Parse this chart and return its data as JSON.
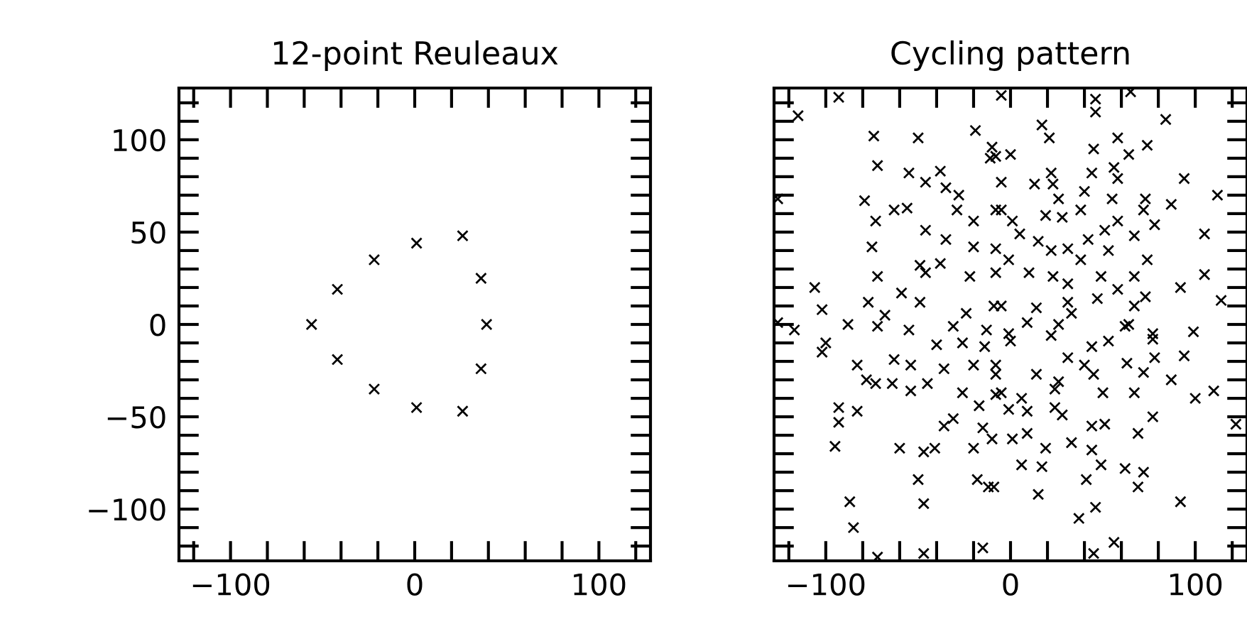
{
  "chart_data": [
    {
      "type": "scatter",
      "title": "12-point Reuleaux",
      "marker": "cross",
      "grid": false,
      "xlim": [
        -128,
        128
      ],
      "ylim": [
        -128,
        128
      ],
      "xticks": [
        {
          "value": -120,
          "label": null
        },
        {
          "value": -100,
          "label": "−100"
        },
        {
          "value": -80,
          "label": null
        },
        {
          "value": -60,
          "label": null
        },
        {
          "value": -40,
          "label": null
        },
        {
          "value": -20,
          "label": null
        },
        0,
        {
          "value": 20,
          "label": null
        },
        {
          "value": 40,
          "label": null
        },
        {
          "value": 60,
          "label": null
        },
        {
          "value": 80,
          "label": null
        },
        100,
        {
          "value": 120,
          "label": null
        }
      ],
      "yticks": [
        {
          "value": -120,
          "label": null
        },
        {
          "value": -110,
          "label": null
        },
        {
          "value": -100,
          "label": "−100"
        },
        {
          "value": -90,
          "label": null
        },
        {
          "value": -80,
          "label": null
        },
        {
          "value": -70,
          "label": null
        },
        {
          "value": -60,
          "label": null
        },
        {
          "value": -50,
          "label": "−50"
        },
        {
          "value": -40,
          "label": null
        },
        {
          "value": -30,
          "label": null
        },
        {
          "value": -20,
          "label": null
        },
        {
          "value": -10,
          "label": null
        },
        0,
        {
          "value": 10,
          "label": null
        },
        {
          "value": 20,
          "label": null
        },
        {
          "value": 30,
          "label": null
        },
        {
          "value": 40,
          "label": null
        },
        50,
        {
          "value": 60,
          "label": null
        },
        {
          "value": 70,
          "label": null
        },
        {
          "value": 80,
          "label": null
        },
        {
          "value": 90,
          "label": null
        },
        100,
        {
          "value": 110,
          "label": null
        },
        {
          "value": 120,
          "label": null
        }
      ],
      "series": [
        {
          "color": "#000000",
          "x": [
            -56,
            -42,
            -22,
            1,
            26,
            36,
            39,
            36,
            26,
            1,
            -22,
            -42
          ],
          "values": [
            0,
            19,
            35,
            44,
            48,
            25,
            0,
            -24,
            -47,
            -45,
            -35,
            -19
          ]
        }
      ]
    },
    {
      "type": "scatter",
      "title": "Cycling pattern",
      "marker": "cross",
      "grid": false,
      "tick_labels": "x",
      "xlim": [
        -128,
        128
      ],
      "ylim": [
        -128,
        128
      ],
      "xticks": [
        {
          "value": -120,
          "label": null
        },
        {
          "value": -100,
          "label": "−100"
        },
        {
          "value": -80,
          "label": null
        },
        {
          "value": -60,
          "label": null
        },
        {
          "value": -40,
          "label": null
        },
        {
          "value": -20,
          "label": null
        },
        0,
        {
          "value": 20,
          "label": null
        },
        {
          "value": 40,
          "label": null
        },
        {
          "value": 60,
          "label": null
        },
        {
          "value": 80,
          "label": null
        },
        100,
        {
          "value": 120,
          "label": null
        }
      ],
      "yticks": [
        {
          "value": -120,
          "label": null
        },
        {
          "value": -110,
          "label": null
        },
        {
          "value": -100,
          "label": null
        },
        {
          "value": -90,
          "label": null
        },
        {
          "value": -80,
          "label": null
        },
        {
          "value": -70,
          "label": null
        },
        {
          "value": -60,
          "label": null
        },
        {
          "value": -50,
          "label": null
        },
        {
          "value": -40,
          "label": null
        },
        {
          "value": -30,
          "label": null
        },
        {
          "value": -20,
          "label": null
        },
        {
          "value": -10,
          "label": null
        },
        {
          "value": 0,
          "label": null
        },
        {
          "value": 10,
          "label": null
        },
        {
          "value": 20,
          "label": null
        },
        {
          "value": 30,
          "label": null
        },
        {
          "value": 40,
          "label": null
        },
        {
          "value": 50,
          "label": null
        },
        {
          "value": 60,
          "label": null
        },
        {
          "value": 70,
          "label": null
        },
        {
          "value": 80,
          "label": null
        },
        {
          "value": 90,
          "label": null
        },
        {
          "value": 100,
          "label": null
        },
        {
          "value": 110,
          "label": null
        },
        {
          "value": 120,
          "label": null
        }
      ],
      "series": [
        {
          "color": "#000000",
          "x": [
            -93,
            -115,
            -74,
            -50,
            -19,
            -10,
            -11,
            -72,
            -55,
            -38,
            -46,
            -35,
            -28,
            -126,
            -79,
            -56,
            -63,
            -73,
            -29,
            -20,
            -8,
            -46,
            -35,
            -75,
            -20,
            -8,
            -49,
            -38,
            -46,
            -72,
            -22,
            -8,
            -106,
            -59,
            -77,
            -49,
            -9,
            -102,
            -24,
            -68,
            -88,
            -126,
            -117,
            -72,
            -55,
            -31,
            -13,
            -5,
            46,
            46,
            65,
            84,
            17,
            21,
            58,
            45,
            64,
            74,
            0,
            -8,
            44,
            56,
            58,
            94,
            112,
            -5,
            13,
            22,
            23,
            40,
            38,
            55,
            73,
            87,
            26,
            19,
            28,
            -5,
            1,
            78,
            72,
            58,
            51,
            5,
            42,
            67,
            105,
            15,
            22,
            31,
            53,
            -1,
            38,
            74,
            10,
            23,
            49,
            58,
            67,
            92,
            105,
            114,
            31,
            31,
            47,
            67,
            73,
            -5,
            14,
            33,
            9,
            26,
            62,
            77,
            99,
            -1,
            -100,
            -102,
            -40,
            -26,
            -14,
            -83,
            -63,
            -54,
            -36,
            -20,
            -78,
            -73,
            -64,
            -54,
            -45,
            -26,
            -8,
            -17,
            -93,
            -83,
            -93,
            -31,
            -36,
            -15,
            -10,
            -95,
            -60,
            -47,
            -41,
            -20,
            -50,
            -18,
            -12,
            -87,
            -47,
            -85,
            -72,
            -47,
            -15,
            0,
            -8,
            22,
            44,
            53,
            64,
            77,
            94,
            31,
            40,
            45,
            63,
            72,
            78,
            14,
            26,
            24,
            -8,
            -5,
            50,
            67,
            87,
            100,
            110,
            122,
            6,
            9,
            24,
            28,
            -1,
            44,
            51,
            69,
            77,
            1,
            9,
            19,
            33,
            44,
            49,
            41,
            6,
            17,
            62,
            72,
            69,
            15,
            92,
            46,
            37,
            56,
            45,
            -9
          ],
          "values": [
            123,
            113,
            102,
            101,
            105,
            96,
            90,
            86,
            82,
            83,
            77,
            74,
            70,
            68,
            67,
            63,
            62,
            56,
            62,
            56,
            62,
            51,
            46,
            42,
            42,
            41,
            32,
            33,
            28,
            26,
            26,
            28,
            20,
            17,
            12,
            12,
            10,
            8,
            6,
            5,
            0,
            1,
            -3,
            -1,
            -3,
            -1,
            -3,
            124,
            122,
            115,
            126,
            111,
            108,
            101,
            101,
            95,
            92,
            97,
            92,
            91,
            82,
            85,
            79,
            79,
            70,
            77,
            76,
            82,
            76,
            72,
            62,
            68,
            68,
            65,
            68,
            59,
            58,
            62,
            56,
            54,
            62,
            56,
            51,
            49,
            46,
            48,
            49,
            45,
            40,
            41,
            40,
            35,
            35,
            35,
            28,
            26,
            26,
            19,
            26,
            20,
            27,
            13,
            22,
            12,
            14,
            10,
            15,
            10,
            9,
            6,
            1,
            0,
            -1,
            -5,
            -4,
            -5,
            -10,
            -15,
            -11,
            -10,
            -12,
            -22,
            -19,
            -22,
            -24,
            -22,
            -30,
            -32,
            -32,
            -36,
            -32,
            -37,
            -38,
            -44,
            -45,
            -47,
            -53,
            -51,
            -55,
            -56,
            -62,
            -66,
            -67,
            -69,
            -67,
            -67,
            -84,
            -84,
            -88,
            -96,
            -97,
            -110,
            -126,
            -124,
            -121,
            -9,
            -22,
            -6,
            -12,
            -9,
            0,
            -8,
            -17,
            -18,
            -22,
            -27,
            -21,
            -26,
            -18,
            -27,
            -31,
            -35,
            -27,
            -37,
            -37,
            -37,
            -30,
            -40,
            -36,
            -54,
            -40,
            -47,
            -45,
            -49,
            -46,
            -55,
            -54,
            -59,
            -50,
            -62,
            -59,
            -67,
            -64,
            -68,
            -76,
            -84,
            -76,
            -77,
            -78,
            -80,
            -88,
            -92,
            -96,
            -99,
            -105,
            -118,
            -124,
            -88
          ]
        }
      ]
    }
  ]
}
